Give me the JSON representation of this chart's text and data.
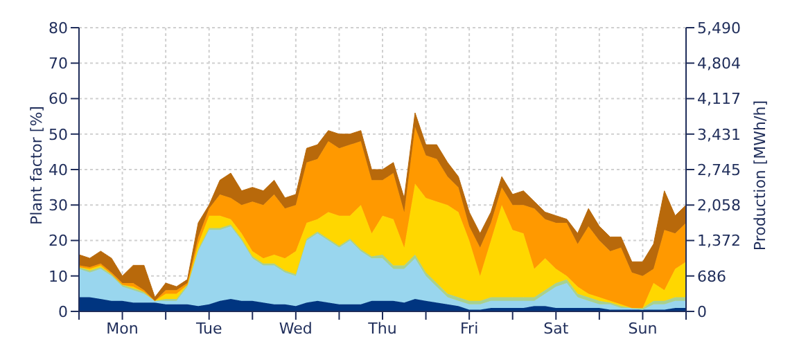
{
  "chart_data": {
    "type": "area",
    "stacked": true,
    "ylabel": "Plant factor [%]",
    "y2label": "Production [MWh/h]",
    "categories": [
      null,
      null,
      null,
      null,
      "Mon",
      null,
      null,
      null,
      null,
      null,
      null,
      null,
      "Tue",
      null,
      null,
      null,
      null,
      null,
      null,
      null,
      "Wed",
      null,
      null,
      null,
      null,
      null,
      null,
      null,
      "Thu",
      null,
      null,
      null,
      null,
      null,
      null,
      null,
      "Fri",
      null,
      null,
      null,
      null,
      null,
      null,
      null,
      "Sat",
      null,
      null,
      null,
      null,
      null,
      null,
      null,
      "Sun",
      null,
      null,
      null,
      null
    ],
    "ylim": [
      0,
      80
    ],
    "yticks": [
      0,
      10,
      20,
      30,
      40,
      50,
      60,
      70,
      80
    ],
    "y2lim": [
      0,
      5490
    ],
    "y2ticks": [
      0,
      686,
      {
        "value": 1372,
        "label": "1,372"
      },
      {
        "value": 2058,
        "label": "2,058"
      },
      {
        "value": 2745,
        "label": "2,745"
      },
      {
        "value": 3431,
        "label": "3,431"
      },
      {
        "value": 4117,
        "label": "4,117"
      },
      {
        "value": 4804,
        "label": "4,804"
      },
      {
        "value": 5490,
        "label": "5,490"
      }
    ],
    "grid": true,
    "series": [
      {
        "color": "#003580",
        "values": [
          4,
          4,
          3.5,
          3,
          3,
          2.5,
          2.5,
          2.5,
          2,
          2,
          2,
          1.5,
          2,
          3,
          3.5,
          3,
          3,
          2.5,
          2,
          2,
          1.5,
          2.5,
          3,
          2.5,
          2,
          2,
          2,
          3,
          3,
          3,
          2.5,
          3.5,
          3,
          2.5,
          2,
          1.5,
          0.5,
          0.5,
          1,
          1,
          1,
          1,
          1.5,
          1.5,
          1,
          1,
          1,
          1,
          1,
          0.5,
          0.5,
          0.5,
          0.5,
          0.5,
          0.5,
          1,
          1
        ]
      },
      {
        "color": "#99d6ee",
        "values": [
          8,
          7,
          8.5,
          7,
          4,
          3.5,
          2.5,
          0.5,
          1,
          1,
          5,
          15.5,
          21,
          20,
          20.5,
          17,
          12,
          10.5,
          11,
          9,
          8.5,
          17.5,
          19,
          17.5,
          16,
          18,
          15,
          12,
          12,
          9,
          9.5,
          11.5,
          7,
          4.5,
          2,
          1.5,
          1.5,
          1.5,
          2,
          2,
          2,
          2,
          1.5,
          3.5,
          6,
          7,
          3,
          2,
          1,
          1.5,
          0.5,
          0.5,
          0,
          1.5,
          1.5,
          2,
          2
        ]
      },
      {
        "color": "#a9d18e",
        "values": [
          0.5,
          0.5,
          0.5,
          0.5,
          0.5,
          0.5,
          0.5,
          0,
          0.5,
          0.5,
          0.5,
          0.5,
          0.5,
          0.5,
          0.5,
          0.5,
          0.5,
          0.5,
          0.5,
          0.5,
          0.5,
          0.5,
          0.5,
          0.5,
          0.5,
          0.5,
          0.5,
          0.5,
          1,
          1,
          1,
          1,
          1,
          1,
          1,
          1,
          1,
          1,
          1,
          1,
          1,
          1,
          1,
          1,
          1,
          1,
          1,
          1,
          1,
          0.5,
          0.5,
          0,
          0.5,
          1,
          1,
          1,
          1
        ]
      },
      {
        "color": "#ffd700",
        "values": [
          0,
          0.5,
          0.5,
          0,
          0,
          0.5,
          0,
          0,
          1.5,
          1.5,
          0,
          1.5,
          3.5,
          3.5,
          1.5,
          1.5,
          1.5,
          1.5,
          2.5,
          3.5,
          6.5,
          4.5,
          3.5,
          7.5,
          8.5,
          6.5,
          12.5,
          6.5,
          11,
          13,
          5,
          20,
          21,
          23,
          25,
          24,
          17,
          7,
          16,
          26,
          19,
          18,
          8,
          9,
          4,
          1,
          2,
          1,
          1,
          0.5,
          0.5,
          0,
          0,
          5,
          3,
          8,
          10
        ]
      },
      {
        "color": "#ff9900",
        "values": [
          0.5,
          0.5,
          0.5,
          0.5,
          0.5,
          1,
          0.5,
          0,
          1,
          1,
          0.5,
          2,
          2,
          6,
          6,
          8,
          14,
          15,
          17,
          14,
          13,
          17,
          17,
          20,
          19,
          20,
          18,
          15,
          10,
          13,
          10,
          16,
          12,
          12,
          8,
          7,
          4,
          8,
          5,
          5,
          7,
          8,
          17,
          11,
          13,
          15,
          12,
          19,
          16,
          14,
          16,
          10,
          9,
          4,
          17,
          10,
          11
        ]
      },
      {
        "color": "#b8690b",
        "values": [
          3,
          2.5,
          3.5,
          4,
          2,
          5,
          7,
          1,
          2,
          1,
          1,
          4,
          1,
          4,
          7,
          4,
          4,
          4,
          4,
          3,
          3,
          4,
          4,
          3,
          4,
          3,
          3,
          3,
          3,
          3,
          4,
          4,
          3,
          4,
          4,
          3,
          4,
          4,
          3,
          3,
          3,
          4,
          2,
          2,
          2,
          1,
          3,
          5,
          4,
          4,
          3,
          3,
          4,
          7,
          11,
          5,
          5
        ]
      }
    ]
  }
}
